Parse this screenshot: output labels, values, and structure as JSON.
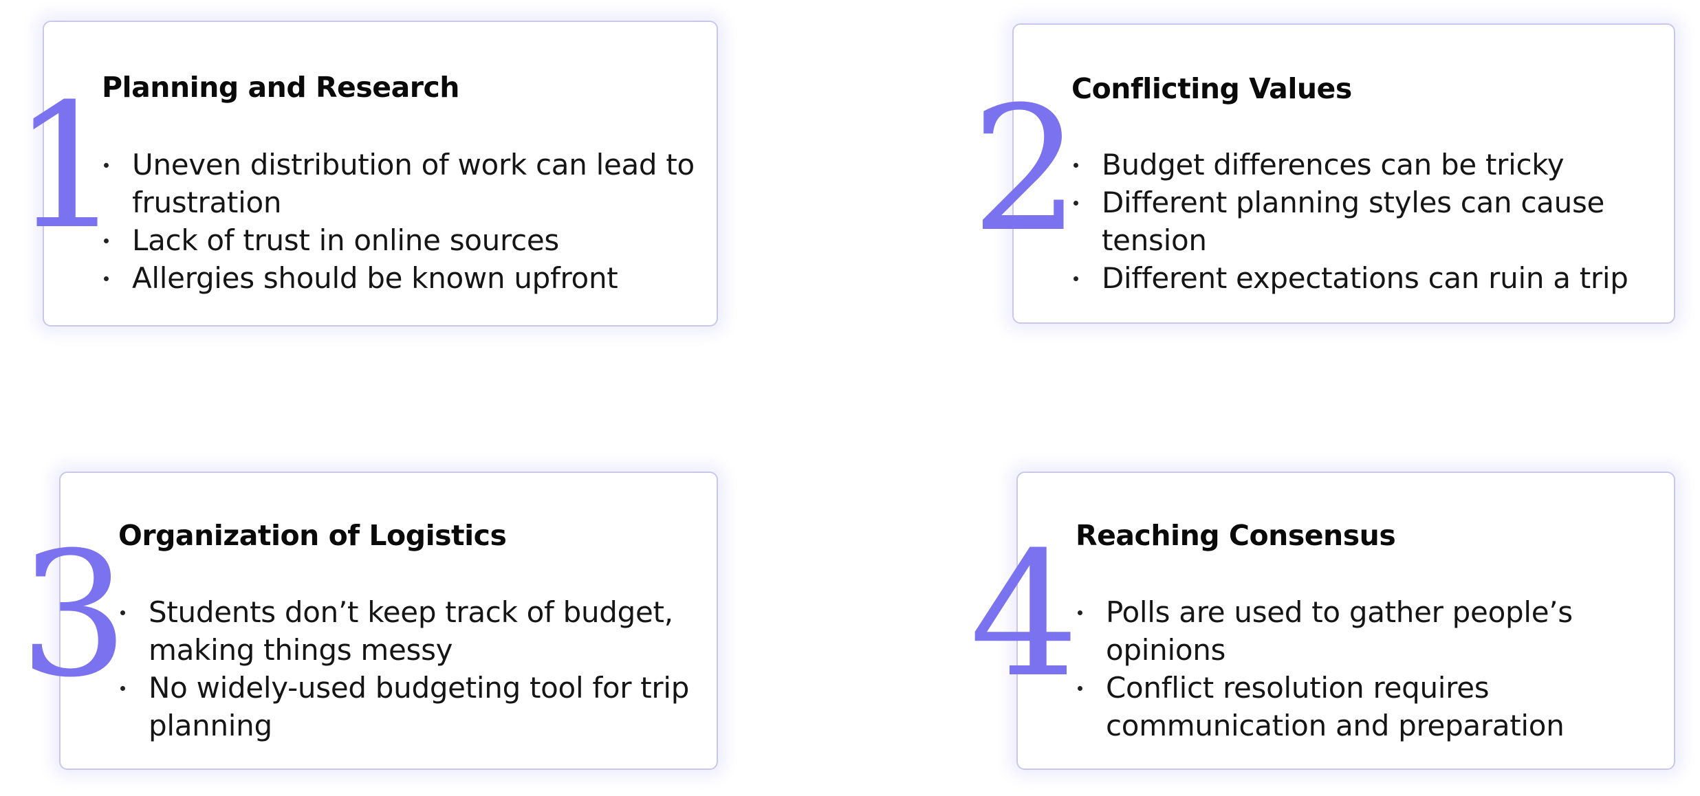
{
  "colors": {
    "accent": "#7a72ee",
    "card_border": "#cbc7ea",
    "text": "#151515"
  },
  "sections": [
    {
      "number": "1",
      "title": "Planning and Research",
      "bullets": [
        "Uneven distribution of work can lead to frustration",
        "Lack of trust in online sources",
        "Allergies should be known upfront"
      ]
    },
    {
      "number": "2",
      "title": "Conflicting Values",
      "bullets": [
        "Budget differences can be tricky",
        "Different planning styles can cause tension",
        "Different expectations can ruin a trip"
      ]
    },
    {
      "number": "3",
      "title": "Organization of Logistics",
      "bullets": [
        "Students don’t keep track of budget, making things messy",
        "No widely-used budgeting tool for trip planning"
      ]
    },
    {
      "number": "4",
      "title": "Reaching Consensus",
      "bullets": [
        "Polls are used to gather people’s opinions",
        "Conflict resolution requires communication and preparation"
      ]
    }
  ]
}
